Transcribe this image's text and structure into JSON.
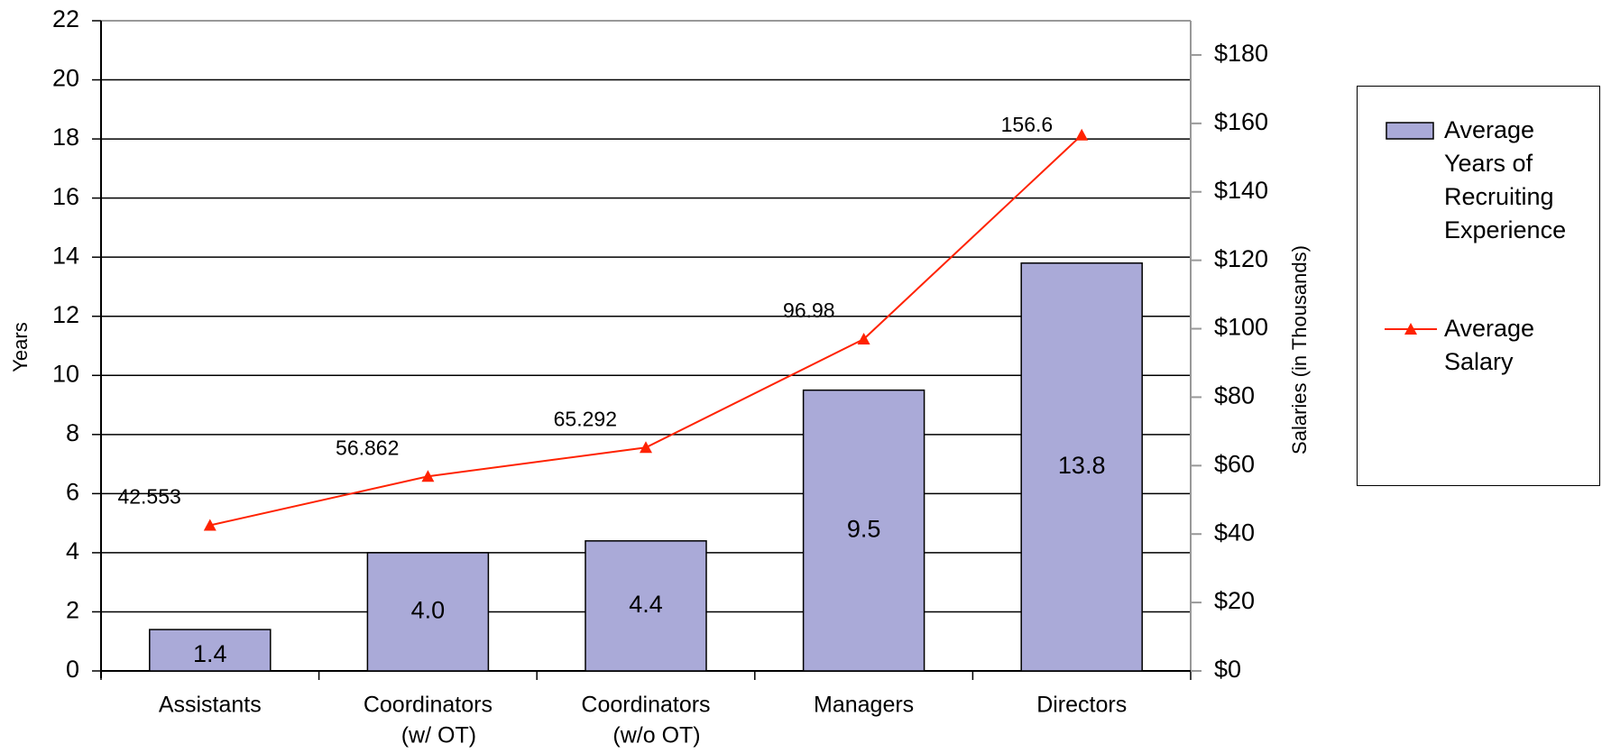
{
  "chart_data": {
    "type": "bar-line",
    "categories": [
      [
        "Assistants"
      ],
      [
        "Coordinators",
        "(w/ OT)"
      ],
      [
        "Coordinators",
        "(w/o OT)"
      ],
      [
        "Managers"
      ],
      [
        "Directors"
      ]
    ],
    "y_label": "Years",
    "y2_label": "Salaries (in Thousands)",
    "series": [
      {
        "name": "Average Years of Recruiting Experience",
        "type": "bar",
        "color": "#aaaad8",
        "values": [
          1.4,
          4.0,
          4.4,
          9.5,
          13.8
        ],
        "value_labels": [
          "1.4",
          "4.0",
          "4.4",
          "9.5",
          "13.8"
        ]
      },
      {
        "name": "Average Salary",
        "type": "line",
        "axis": "y2",
        "color": "#ff2200",
        "values": [
          42.553,
          56.862,
          65.292,
          96.98,
          156.6
        ]
      }
    ],
    "ylim": [
      0,
      22
    ],
    "yticks": [
      0,
      2,
      4,
      6,
      8,
      10,
      12,
      14,
      16,
      18,
      20,
      22
    ],
    "y2lim": [
      0,
      190
    ],
    "y2ticks": [
      {
        "value": 0,
        "label": "$0"
      },
      {
        "value": 20,
        "label": "$20"
      },
      {
        "value": 40,
        "label": "$40"
      },
      {
        "value": 60,
        "label": "$60"
      },
      {
        "value": 80,
        "label": "$80"
      },
      {
        "value": 100,
        "label": "$100"
      },
      {
        "value": 120,
        "label": "$120"
      },
      {
        "value": 140,
        "label": "$140"
      },
      {
        "value": 160,
        "label": "$160"
      },
      {
        "value": 180,
        "label": "$180"
      }
    ],
    "grid": true,
    "legend": "right"
  }
}
